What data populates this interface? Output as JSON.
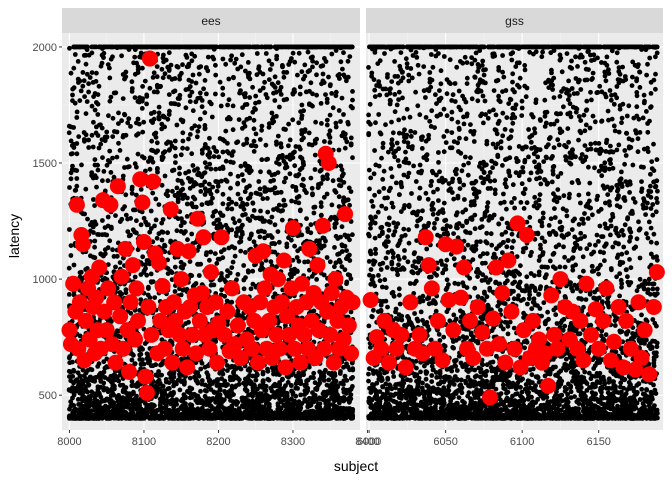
{
  "chart_data": {
    "type": "scatter",
    "facet_by": "",
    "x_label": "subject",
    "y_label": "latency",
    "y_ticks": [
      500,
      1000,
      1500,
      2000
    ],
    "ylim": [
      350,
      2060
    ],
    "grid": true,
    "panels": [
      {
        "name": "ees",
        "xlim": [
          7990,
          8390
        ],
        "x_ticks": [
          8000,
          8100,
          8200,
          8300,
          8400
        ],
        "x_tick_labels": [
          "8000",
          "8100",
          "8200",
          "8300",
          "8400"
        ],
        "raw_series": {
          "color": "#000000",
          "description_hidden": true,
          "subject_range": [
            8000,
            8380
          ],
          "latency_range": [
            400,
            2000
          ],
          "cap_value": 2000
        },
        "means_series": {
          "color": "#ff0000",
          "points": [
            [
              8000,
              780
            ],
            [
              8002,
              720
            ],
            [
              8005,
              980
            ],
            [
              8008,
              860
            ],
            [
              8010,
              1320
            ],
            [
              8012,
              700
            ],
            [
              8014,
              900
            ],
            [
              8016,
              1190
            ],
            [
              8018,
              1150
            ],
            [
              8020,
              650
            ],
            [
              8022,
              820
            ],
            [
              8025,
              960
            ],
            [
              8027,
              740
            ],
            [
              8030,
              1010
            ],
            [
              8032,
              880
            ],
            [
              8034,
              680
            ],
            [
              8036,
              920
            ],
            [
              8038,
              780
            ],
            [
              8040,
              1050
            ],
            [
              8042,
              700
            ],
            [
              8045,
              1340
            ],
            [
              8047,
              860
            ],
            [
              8050,
              780
            ],
            [
              8052,
              960
            ],
            [
              8055,
              1320
            ],
            [
              8057,
              720
            ],
            [
              8060,
              900
            ],
            [
              8062,
              640
            ],
            [
              8065,
              1400
            ],
            [
              8068,
              840
            ],
            [
              8070,
              1010
            ],
            [
              8072,
              700
            ],
            [
              8075,
              1130
            ],
            [
              8078,
              780
            ],
            [
              8080,
              600
            ],
            [
              8082,
              900
            ],
            [
              8085,
              1060
            ],
            [
              8088,
              740
            ],
            [
              8090,
              960
            ],
            [
              8092,
              820
            ],
            [
              8095,
              1430
            ],
            [
              8098,
              1330
            ],
            [
              8100,
              1160
            ],
            [
              8102,
              580
            ],
            [
              8104,
              510
            ],
            [
              8106,
              880
            ],
            [
              8108,
              1950
            ],
            [
              8110,
              760
            ],
            [
              8112,
              1420
            ],
            [
              8115,
              1110
            ],
            [
              8118,
              680
            ],
            [
              8120,
              1070
            ],
            [
              8122,
              820
            ],
            [
              8125,
              970
            ],
            [
              8128,
              700
            ],
            [
              8130,
              880
            ],
            [
              8133,
              780
            ],
            [
              8136,
              1300
            ],
            [
              8138,
              640
            ],
            [
              8140,
              900
            ],
            [
              8142,
              820
            ],
            [
              8145,
              1130
            ],
            [
              8148,
              760
            ],
            [
              8150,
              1000
            ],
            [
              8152,
              700
            ],
            [
              8155,
              860
            ],
            [
              8158,
              620
            ],
            [
              8160,
              1120
            ],
            [
              8162,
              880
            ],
            [
              8165,
              760
            ],
            [
              8168,
              930
            ],
            [
              8170,
              680
            ],
            [
              8172,
              1260
            ],
            [
              8175,
              820
            ],
            [
              8178,
              940
            ],
            [
              8180,
              1180
            ],
            [
              8182,
              760
            ],
            [
              8185,
              880
            ],
            [
              8188,
              700
            ],
            [
              8190,
              1030
            ],
            [
              8193,
              780
            ],
            [
              8196,
              900
            ],
            [
              8198,
              640
            ],
            [
              8200,
              810
            ],
            [
              8204,
              1180
            ],
            [
              8208,
              760
            ],
            [
              8212,
              860
            ],
            [
              8215,
              690
            ],
            [
              8218,
              960
            ],
            [
              8222,
              720
            ],
            [
              8226,
              800
            ],
            [
              8230,
              660
            ],
            [
              8234,
              900
            ],
            [
              8238,
              740
            ],
            [
              8242,
              880
            ],
            [
              8245,
              700
            ],
            [
              8248,
              820
            ],
            [
              8250,
              1100
            ],
            [
              8253,
              640
            ],
            [
              8256,
              900
            ],
            [
              8258,
              780
            ],
            [
              8260,
              1120
            ],
            [
              8262,
              960
            ],
            [
              8265,
              700
            ],
            [
              8268,
              820
            ],
            [
              8270,
              1020
            ],
            [
              8272,
              660
            ],
            [
              8275,
              880
            ],
            [
              8278,
              760
            ],
            [
              8280,
              1000
            ],
            [
              8282,
              700
            ],
            [
              8285,
              900
            ],
            [
              8288,
              1080
            ],
            [
              8290,
              620
            ],
            [
              8292,
              840
            ],
            [
              8295,
              760
            ],
            [
              8298,
              960
            ],
            [
              8300,
              1220
            ],
            [
              8302,
              700
            ],
            [
              8305,
              880
            ],
            [
              8308,
              800
            ],
            [
              8310,
              640
            ],
            [
              8312,
              980
            ],
            [
              8315,
              760
            ],
            [
              8318,
              900
            ],
            [
              8320,
              700
            ],
            [
              8322,
              1130
            ],
            [
              8325,
              820
            ],
            [
              8328,
              940
            ],
            [
              8330,
              660
            ],
            [
              8333,
              1060
            ],
            [
              8335,
              780
            ],
            [
              8338,
              900
            ],
            [
              8340,
              1230
            ],
            [
              8342,
              700
            ],
            [
              8344,
              1540
            ],
            [
              8346,
              860
            ],
            [
              8348,
              1500
            ],
            [
              8350,
              760
            ],
            [
              8352,
              940
            ],
            [
              8355,
              640
            ],
            [
              8357,
              1000
            ],
            [
              8360,
              820
            ],
            [
              8362,
              700
            ],
            [
              8365,
              880
            ],
            [
              8368,
              740
            ],
            [
              8370,
              1280
            ],
            [
              8372,
              920
            ],
            [
              8375,
              800
            ],
            [
              8378,
              680
            ],
            [
              8380,
              900
            ]
          ]
        }
      },
      {
        "name": "gss",
        "xlim": [
          5998,
          6192
        ],
        "x_ticks": [
          6000,
          6050,
          6100,
          6150
        ],
        "x_tick_labels": [
          "6000",
          "6050",
          "6100",
          "6150"
        ],
        "raw_series": {
          "color": "#000000",
          "description_hidden": true,
          "subject_range": [
            6000,
            6188
          ],
          "latency_range": [
            400,
            2000
          ],
          "cap_value": 2000
        },
        "means_series": {
          "color": "#ff0000",
          "points": [
            [
              6001,
              910
            ],
            [
              6003,
              660
            ],
            [
              6005,
              750
            ],
            [
              6008,
              700
            ],
            [
              6010,
              820
            ],
            [
              6013,
              640
            ],
            [
              6016,
              780
            ],
            [
              6018,
              700
            ],
            [
              6021,
              760
            ],
            [
              6024,
              620
            ],
            [
              6027,
              900
            ],
            [
              6030,
              700
            ],
            [
              6033,
              760
            ],
            [
              6035,
              680
            ],
            [
              6037,
              1180
            ],
            [
              6039,
              1060
            ],
            [
              6041,
              960
            ],
            [
              6043,
              700
            ],
            [
              6045,
              820
            ],
            [
              6048,
              650
            ],
            [
              6050,
              1150
            ],
            [
              6052,
              910
            ],
            [
              6055,
              780
            ],
            [
              6057,
              1140
            ],
            [
              6060,
              920
            ],
            [
              6062,
              1050
            ],
            [
              6064,
              700
            ],
            [
              6066,
              820
            ],
            [
              6068,
              660
            ],
            [
              6071,
              880
            ],
            [
              6074,
              770
            ],
            [
              6077,
              700
            ],
            [
              6079,
              490
            ],
            [
              6081,
              830
            ],
            [
              6083,
              1050
            ],
            [
              6085,
              720
            ],
            [
              6087,
              940
            ],
            [
              6089,
              640
            ],
            [
              6091,
              1080
            ],
            [
              6093,
              860
            ],
            [
              6095,
              700
            ],
            [
              6097,
              1240
            ],
            [
              6099,
              620
            ],
            [
              6101,
              780
            ],
            [
              6103,
              1190
            ],
            [
              6105,
              660
            ],
            [
              6107,
              820
            ],
            [
              6109,
              700
            ],
            [
              6111,
              740
            ],
            [
              6113,
              640
            ],
            [
              6115,
              680
            ],
            [
              6117,
              540
            ],
            [
              6119,
              930
            ],
            [
              6121,
              760
            ],
            [
              6123,
              700
            ],
            [
              6125,
              1000
            ],
            [
              6128,
              880
            ],
            [
              6131,
              740
            ],
            [
              6133,
              860
            ],
            [
              6136,
              700
            ],
            [
              6138,
              820
            ],
            [
              6140,
              650
            ],
            [
              6142,
              980
            ],
            [
              6145,
              760
            ],
            [
              6148,
              870
            ],
            [
              6150,
              700
            ],
            [
              6153,
              820
            ],
            [
              6155,
              960
            ],
            [
              6158,
              650
            ],
            [
              6160,
              730
            ],
            [
              6163,
              880
            ],
            [
              6166,
              620
            ],
            [
              6168,
              820
            ],
            [
              6171,
              700
            ],
            [
              6174,
              610
            ],
            [
              6176,
              900
            ],
            [
              6178,
              660
            ],
            [
              6180,
              780
            ],
            [
              6183,
              590
            ],
            [
              6186,
              880
            ],
            [
              6188,
              1030
            ]
          ]
        }
      }
    ]
  }
}
